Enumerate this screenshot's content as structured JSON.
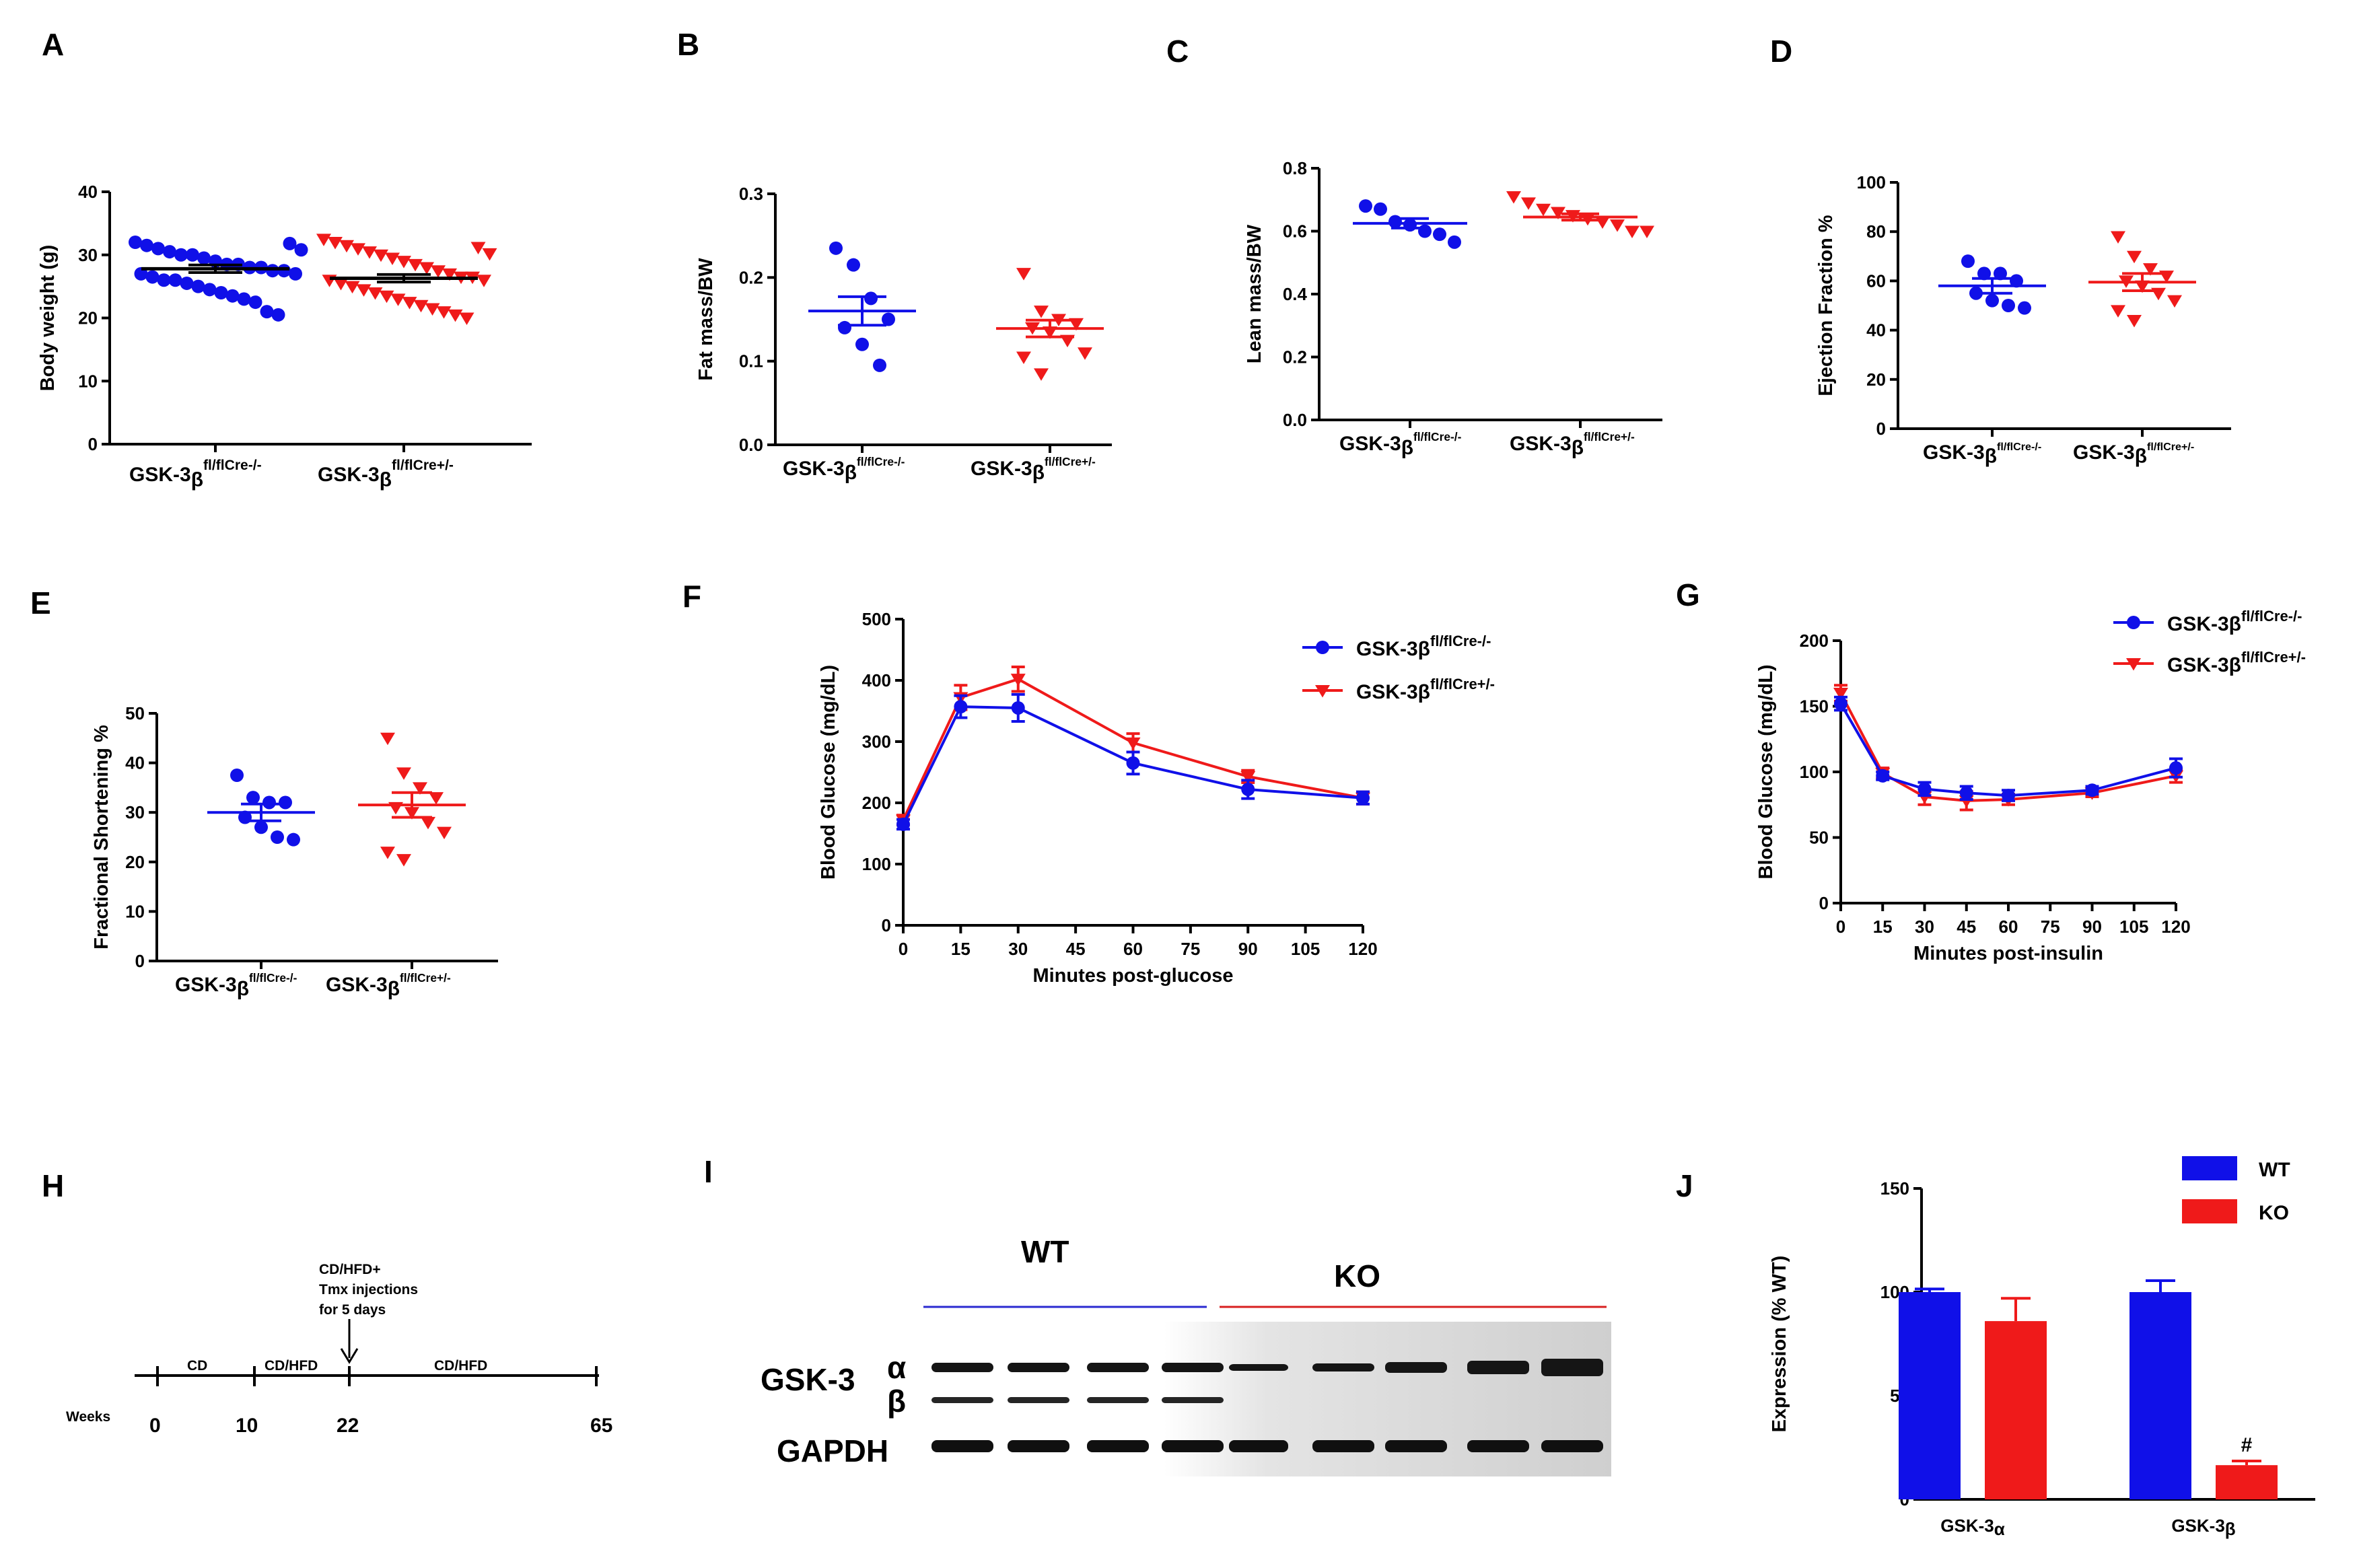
{
  "colors": {
    "blue": "#1010e8",
    "red": "#ef1a1a",
    "wt_line": "#2a2ad0",
    "ko_line": "#d82020"
  },
  "panel_labels": {
    "A": "A",
    "B": "B",
    "C": "C",
    "D": "D",
    "E": "E",
    "F": "F",
    "G": "G",
    "H": "H",
    "I": "I",
    "J": "J"
  },
  "group_labels": {
    "wt_prefix": "GSK-3",
    "wt_greek": "β",
    "wt_sup": "fl/flCre-/-",
    "ko_prefix": "GSK-3",
    "ko_greek": "β",
    "ko_sup": "fl/flCre+/-"
  },
  "chart_data": [
    {
      "id": "A",
      "type": "scatter",
      "ylabel": "Body weight (g)",
      "ylim": [
        0,
        40
      ],
      "yticks": [
        "0",
        "10",
        "20",
        "30",
        "40"
      ],
      "ytick_values": [
        0,
        10,
        20,
        30,
        40
      ],
      "groups": [
        {
          "name": "GSK-3β fl/flCre-/-",
          "mean": 27.8,
          "sem": 0.6,
          "values": [
            32,
            31.5,
            31,
            30.5,
            30,
            30,
            29.5,
            29,
            28.5,
            28.5,
            28,
            28,
            27.5,
            27.5,
            27,
            27,
            26.5,
            26,
            26,
            25.5,
            25,
            24.5,
            24,
            23.5,
            23,
            22.5,
            21,
            20.5,
            31.8,
            30.8
          ]
        },
        {
          "name": "GSK-3β fl/flCre+/-",
          "mean": 26.3,
          "sem": 0.6,
          "values": [
            32.5,
            32,
            31.5,
            31,
            30.5,
            30,
            29.5,
            29,
            28.5,
            28,
            27.5,
            27,
            26.5,
            26.5,
            26,
            26,
            25.5,
            25,
            24.5,
            24,
            23.5,
            23,
            22.5,
            22,
            21.5,
            21,
            20.5,
            20,
            31.2,
            30.2
          ]
        }
      ]
    },
    {
      "id": "B",
      "type": "scatter",
      "ylabel": "Fat mass/BW",
      "ylim": [
        0,
        0.3
      ],
      "yticks": [
        "0.0",
        "0.1",
        "0.2",
        "0.3"
      ],
      "ytick_values": [
        0,
        0.1,
        0.2,
        0.3
      ],
      "groups": [
        {
          "name": "GSK-3β fl/flCre-/-",
          "mean": 0.16,
          "sem": 0.017,
          "values": [
            0.235,
            0.215,
            0.175,
            0.15,
            0.14,
            0.12,
            0.095
          ]
        },
        {
          "name": "GSK-3β fl/flCre+/-",
          "mean": 0.139,
          "sem": 0.01,
          "values": [
            0.205,
            0.16,
            0.15,
            0.145,
            0.14,
            0.135,
            0.125,
            0.11,
            0.105,
            0.085
          ]
        }
      ]
    },
    {
      "id": "C",
      "type": "scatter",
      "ylabel": "Lean mass/BW",
      "ylim": [
        0,
        0.8
      ],
      "yticks": [
        "0.0",
        "0.2",
        "0.4",
        "0.6",
        "0.8"
      ],
      "ytick_values": [
        0,
        0.2,
        0.4,
        0.6,
        0.8
      ],
      "groups": [
        {
          "name": "GSK-3β fl/flCre-/-",
          "mean": 0.625,
          "sem": 0.015,
          "values": [
            0.68,
            0.67,
            0.63,
            0.62,
            0.6,
            0.59,
            0.565
          ]
        },
        {
          "name": "GSK-3β fl/flCre+/-",
          "mean": 0.645,
          "sem": 0.01,
          "values": [
            0.71,
            0.69,
            0.67,
            0.66,
            0.65,
            0.64,
            0.63,
            0.62,
            0.6,
            0.6
          ]
        }
      ]
    },
    {
      "id": "D",
      "type": "scatter",
      "ylabel": "Ejection Fraction %",
      "ylim": [
        0,
        100
      ],
      "yticks": [
        "0",
        "20",
        "40",
        "60",
        "80",
        "100"
      ],
      "ytick_values": [
        0,
        20,
        40,
        60,
        80,
        100
      ],
      "groups": [
        {
          "name": "GSK-3β fl/flCre-/-",
          "mean": 58,
          "sem": 3,
          "values": [
            68,
            63,
            63,
            60,
            55,
            52,
            50,
            49
          ]
        },
        {
          "name": "GSK-3β fl/flCre+/-",
          "mean": 59.5,
          "sem": 3.5,
          "values": [
            78,
            70,
            65,
            62,
            60,
            58,
            55,
            52,
            48,
            44
          ]
        }
      ]
    },
    {
      "id": "E",
      "type": "scatter",
      "ylabel": "Fractional Shortening %",
      "ylim": [
        0,
        50
      ],
      "yticks": [
        "0",
        "10",
        "20",
        "30",
        "40",
        "50"
      ],
      "ytick_values": [
        0,
        10,
        20,
        30,
        40,
        50
      ],
      "groups": [
        {
          "name": "GSK-3β fl/flCre-/-",
          "mean": 30,
          "sem": 1.7,
          "values": [
            37.5,
            33,
            32,
            32,
            29,
            27,
            25,
            24.5
          ]
        },
        {
          "name": "GSK-3β fl/flCre+/-",
          "mean": 31.5,
          "sem": 2.5,
          "values": [
            45,
            38,
            35,
            33,
            31,
            30,
            28,
            26,
            22,
            20.5
          ]
        }
      ]
    },
    {
      "id": "F",
      "type": "line",
      "title": "",
      "xlabel": "Minutes post-glucose",
      "ylabel": "Blood Glucose (mg/dL)",
      "xlim": [
        0,
        120
      ],
      "ylim": [
        0,
        500
      ],
      "xticks": [
        "0",
        "15",
        "30",
        "45",
        "60",
        "75",
        "90",
        "105",
        "120"
      ],
      "xtick_values": [
        0,
        15,
        30,
        45,
        60,
        75,
        90,
        105,
        120
      ],
      "yticks": [
        "0",
        "100",
        "200",
        "300",
        "400",
        "500"
      ],
      "ytick_values": [
        0,
        100,
        200,
        300,
        400,
        500
      ],
      "x": [
        0,
        15,
        30,
        60,
        90,
        120
      ],
      "series": [
        {
          "name": "GSK-3β fl/flCre-/-",
          "values": [
            165,
            357,
            355,
            265,
            222,
            208
          ],
          "err": [
            8,
            18,
            22,
            18,
            15,
            10
          ]
        },
        {
          "name": "GSK-3β fl/flCre+/-",
          "values": [
            172,
            372,
            402,
            298,
            243,
            208
          ],
          "err": [
            8,
            20,
            20,
            15,
            10,
            10
          ]
        }
      ],
      "legend": {
        "wt_prefix": "GSK-3β",
        "wt_sup": "fl/flCre-/-",
        "ko_prefix": "GSK-3β",
        "ko_sup": "fl/flCre+/-"
      }
    },
    {
      "id": "G",
      "type": "line",
      "title": "",
      "xlabel": "Minutes post-insulin",
      "ylabel": "Blood Glucose (mg/dL)",
      "xlim": [
        0,
        120
      ],
      "ylim": [
        0,
        200
      ],
      "xticks": [
        "0",
        "15",
        "30",
        "45",
        "60",
        "75",
        "90",
        "105",
        "120"
      ],
      "xtick_values": [
        0,
        15,
        30,
        45,
        60,
        75,
        90,
        105,
        120
      ],
      "yticks": [
        "0",
        "50",
        "100",
        "150",
        "200"
      ],
      "ytick_values": [
        0,
        50,
        100,
        150,
        200
      ],
      "x": [
        0,
        15,
        30,
        45,
        60,
        90,
        120
      ],
      "series": [
        {
          "name": "GSK-3β fl/flCre-/-",
          "values": [
            152,
            97,
            87,
            84,
            82,
            86,
            103
          ],
          "err": [
            5,
            3,
            5,
            5,
            4,
            3,
            7
          ]
        },
        {
          "name": "GSK-3β fl/flCre+/-",
          "values": [
            160,
            99,
            81,
            78,
            79,
            84,
            97
          ],
          "err": [
            6,
            4,
            6,
            7,
            4,
            3,
            5
          ]
        }
      ],
      "legend": {
        "wt_prefix": "GSK-3β",
        "wt_sup": "fl/flCre-/-",
        "ko_prefix": "GSK-3β",
        "ko_sup": "fl/flCre+/-"
      }
    },
    {
      "id": "J",
      "type": "bar",
      "ylabel": "Expression (% WT)",
      "ylim": [
        0,
        150
      ],
      "yticks": [
        "0",
        "50",
        "100",
        "150"
      ],
      "ytick_values": [
        0,
        50,
        100,
        150
      ],
      "categories": [
        "GSK-3α",
        "GSK-3β"
      ],
      "category_labels": [
        {
          "prefix": "GSK-3",
          "greek": "α"
        },
        {
          "prefix": "GSK-3",
          "greek": "β"
        }
      ],
      "series": [
        {
          "name": "WT",
          "values": [
            100,
            100
          ],
          "err": [
            1.5,
            5.5
          ]
        },
        {
          "name": "KO",
          "values": [
            86,
            16.5
          ],
          "err": [
            11,
            2
          ]
        }
      ],
      "annotations": [
        {
          "text": "#",
          "category": "GSK-3β",
          "series": "KO"
        }
      ]
    }
  ],
  "timeline": {
    "top_note": [
      "CD/HFD+",
      "Tmx injections",
      "for 5 days"
    ],
    "segments": [
      "CD",
      "CD/HFD",
      "CD/HFD"
    ],
    "axis_label": "Weeks",
    "week_labels": [
      "0",
      "10",
      "22",
      "65"
    ]
  },
  "western": {
    "wt_label": "WT",
    "ko_label": "KO",
    "gsk_label": "GSK-3",
    "alpha": "α",
    "beta": "β",
    "gapdh": "GAPDH"
  }
}
